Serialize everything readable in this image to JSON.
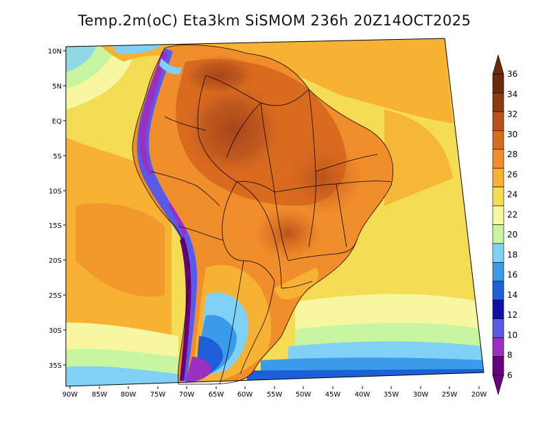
{
  "title": "Temp.2m(oC) Eta3km SiSMOM 236h 20Z14OCT2025",
  "map": {
    "lat_labels": [
      "10N",
      "5N",
      "EQ",
      "5S",
      "10S",
      "15S",
      "20S",
      "25S",
      "30S",
      "35S"
    ],
    "lon_labels": [
      "90W",
      "85W",
      "80W",
      "75W",
      "70W",
      "65W",
      "60W",
      "55W",
      "50W",
      "45W",
      "40W",
      "35W",
      "30W",
      "25W",
      "20W"
    ]
  },
  "colorbar": {
    "labels": [
      "6",
      "8",
      "10",
      "12",
      "14",
      "16",
      "18",
      "20",
      "22",
      "24",
      "26",
      "28",
      "30",
      "32",
      "34",
      "36"
    ],
    "colors": [
      "#6a0080",
      "#9a2fc0",
      "#5a5ae8",
      "#1010a8",
      "#1d5fd9",
      "#3a9be8",
      "#7fd2f5",
      "#c8f5a0",
      "#f7f7a0",
      "#f5dc55",
      "#f7b233",
      "#f08e2c",
      "#d96b1f",
      "#b8521a",
      "#8c3a12",
      "#6b2a0d"
    ]
  }
}
